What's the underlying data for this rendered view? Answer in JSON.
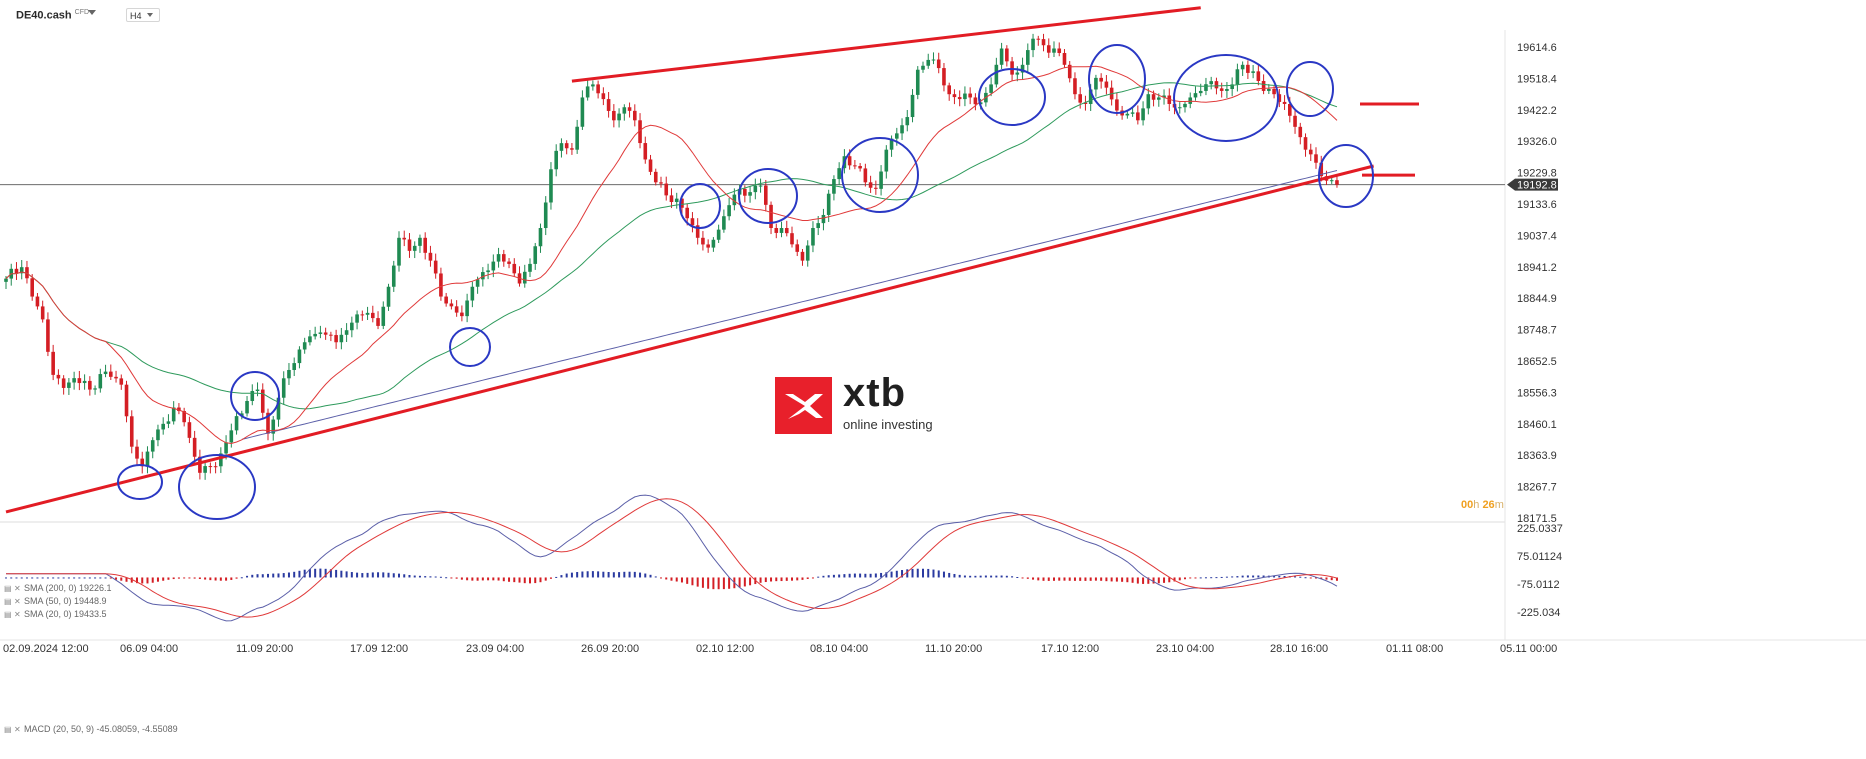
{
  "header": {
    "symbol": "DE40.cash",
    "instrument_type": "CFD",
    "timeframe": "H4"
  },
  "indicators": [
    {
      "label": "SMA (200, 0) 19226.1",
      "color": "#5b5fa8"
    },
    {
      "label": "SMA (50, 0) 19448.9",
      "color": "#2e9a5c"
    },
    {
      "label": "SMA (20, 0) 19433.5",
      "color": "#e03a3a"
    }
  ],
  "macd_label": "MACD (20, 50, 9) -45.08059, -4.55089",
  "timer": {
    "hours": "00",
    "h_unit": "h",
    "minutes": "26",
    "m_unit": "m"
  },
  "logo": {
    "name": "xtb",
    "tagline": "online investing"
  },
  "colors": {
    "up": "#1f8a52",
    "down": "#d41e24",
    "sma20": "#e03a3a",
    "sma50": "#2e9a5c",
    "sma200": "#5b5fa8",
    "annotation_line": "#e21c24",
    "circle": "#2a38c4",
    "macd_pos": "#2a3aa0",
    "macd_neg": "#d41e24"
  },
  "chart_data": {
    "type": "candlestick",
    "price_axis": {
      "ticks": [
        "19614.6",
        "19518.4",
        "19422.2",
        "19326.0",
        "19229.8",
        "19133.6",
        "19037.4",
        "18941.2",
        "18844.9",
        "18748.7",
        "18652.5",
        "18556.3",
        "18460.1",
        "18363.9",
        "18267.7",
        "18171.5"
      ],
      "current_price": "19192.8",
      "range": [
        18171.5,
        19614.6
      ]
    },
    "macd_axis": {
      "ticks": [
        "225.0337",
        "75.01124",
        "-75.0112",
        "-225.034"
      ],
      "range": [
        -225.034,
        225.0337
      ]
    },
    "time_axis": [
      "02.09.2024 12:00",
      "06.09 04:00",
      "11.09 20:00",
      "17.09 12:00",
      "23.09 04:00",
      "26.09 20:00",
      "02.10 12:00",
      "08.10 04:00",
      "11.10 20:00",
      "17.10 12:00",
      "23.10 04:00",
      "28.10 16:00",
      "01.11 08:00",
      "05.11 00:00"
    ],
    "close_anchors": [
      [
        0,
        18905
      ],
      [
        1,
        18935
      ],
      [
        3,
        18940
      ],
      [
        5,
        18850
      ],
      [
        7,
        18780
      ],
      [
        9,
        18610
      ],
      [
        11,
        18570
      ],
      [
        13,
        18600
      ],
      [
        16,
        18565
      ],
      [
        19,
        18620
      ],
      [
        22,
        18580
      ],
      [
        24,
        18390
      ],
      [
        26,
        18330
      ],
      [
        28,
        18410
      ],
      [
        30,
        18460
      ],
      [
        32,
        18510
      ],
      [
        34,
        18465
      ],
      [
        37,
        18310
      ],
      [
        40,
        18330
      ],
      [
        43,
        18440
      ],
      [
        46,
        18530
      ],
      [
        48,
        18565
      ],
      [
        50,
        18430
      ],
      [
        52,
        18540
      ],
      [
        54,
        18625
      ],
      [
        57,
        18710
      ],
      [
        60,
        18740
      ],
      [
        63,
        18710
      ],
      [
        66,
        18770
      ],
      [
        69,
        18800
      ],
      [
        71,
        18760
      ],
      [
        73,
        18880
      ],
      [
        75,
        19030
      ],
      [
        77,
        18990
      ],
      [
        79,
        19030
      ],
      [
        81,
        18960
      ],
      [
        83,
        18850
      ],
      [
        85,
        18820
      ],
      [
        87,
        18790
      ],
      [
        89,
        18880
      ],
      [
        92,
        18930
      ],
      [
        94,
        18980
      ],
      [
        96,
        18950
      ],
      [
        98,
        18890
      ],
      [
        100,
        18950
      ],
      [
        102,
        19060
      ],
      [
        104,
        19240
      ],
      [
        106,
        19320
      ],
      [
        108,
        19300
      ],
      [
        110,
        19460
      ],
      [
        112,
        19500
      ],
      [
        114,
        19455
      ],
      [
        116,
        19390
      ],
      [
        118,
        19430
      ],
      [
        120,
        19390
      ],
      [
        122,
        19270
      ],
      [
        124,
        19200
      ],
      [
        126,
        19160
      ],
      [
        128,
        19150
      ],
      [
        130,
        19090
      ],
      [
        132,
        19030
      ],
      [
        134,
        19000
      ],
      [
        136,
        19055
      ],
      [
        138,
        19130
      ],
      [
        140,
        19180
      ],
      [
        142,
        19170
      ],
      [
        144,
        19190
      ],
      [
        146,
        19060
      ],
      [
        148,
        19060
      ],
      [
        150,
        19010
      ],
      [
        152,
        18960
      ],
      [
        154,
        19060
      ],
      [
        156,
        19100
      ],
      [
        158,
        19210
      ],
      [
        160,
        19280
      ],
      [
        162,
        19250
      ],
      [
        164,
        19200
      ],
      [
        166,
        19180
      ],
      [
        168,
        19300
      ],
      [
        170,
        19350
      ],
      [
        172,
        19400
      ],
      [
        174,
        19545
      ],
      [
        176,
        19575
      ],
      [
        178,
        19550
      ],
      [
        180,
        19470
      ],
      [
        182,
        19455
      ],
      [
        184,
        19460
      ],
      [
        186,
        19445
      ],
      [
        188,
        19500
      ],
      [
        190,
        19610
      ],
      [
        192,
        19530
      ],
      [
        194,
        19560
      ],
      [
        196,
        19640
      ],
      [
        198,
        19620
      ],
      [
        200,
        19610
      ],
      [
        202,
        19560
      ],
      [
        204,
        19470
      ],
      [
        206,
        19440
      ],
      [
        208,
        19520
      ],
      [
        210,
        19490
      ],
      [
        212,
        19420
      ],
      [
        214,
        19410
      ],
      [
        216,
        19390
      ],
      [
        218,
        19470
      ],
      [
        220,
        19460
      ],
      [
        222,
        19440
      ],
      [
        224,
        19430
      ],
      [
        226,
        19460
      ],
      [
        228,
        19480
      ],
      [
        230,
        19510
      ],
      [
        232,
        19480
      ],
      [
        234,
        19500
      ],
      [
        236,
        19560
      ],
      [
        238,
        19540
      ],
      [
        240,
        19480
      ],
      [
        242,
        19470
      ],
      [
        244,
        19440
      ],
      [
        246,
        19370
      ],
      [
        248,
        19300
      ],
      [
        250,
        19260
      ],
      [
        252,
        19205
      ],
      [
        254,
        19192.8
      ]
    ],
    "support_line": {
      "from": [
        0,
        18190
      ],
      "to": [
        261,
        19250
      ]
    },
    "resistance_line": {
      "from": [
        108,
        19510
      ],
      "to": [
        228,
        19735
      ]
    },
    "horizontal_marks": [
      19440,
      19222
    ]
  }
}
